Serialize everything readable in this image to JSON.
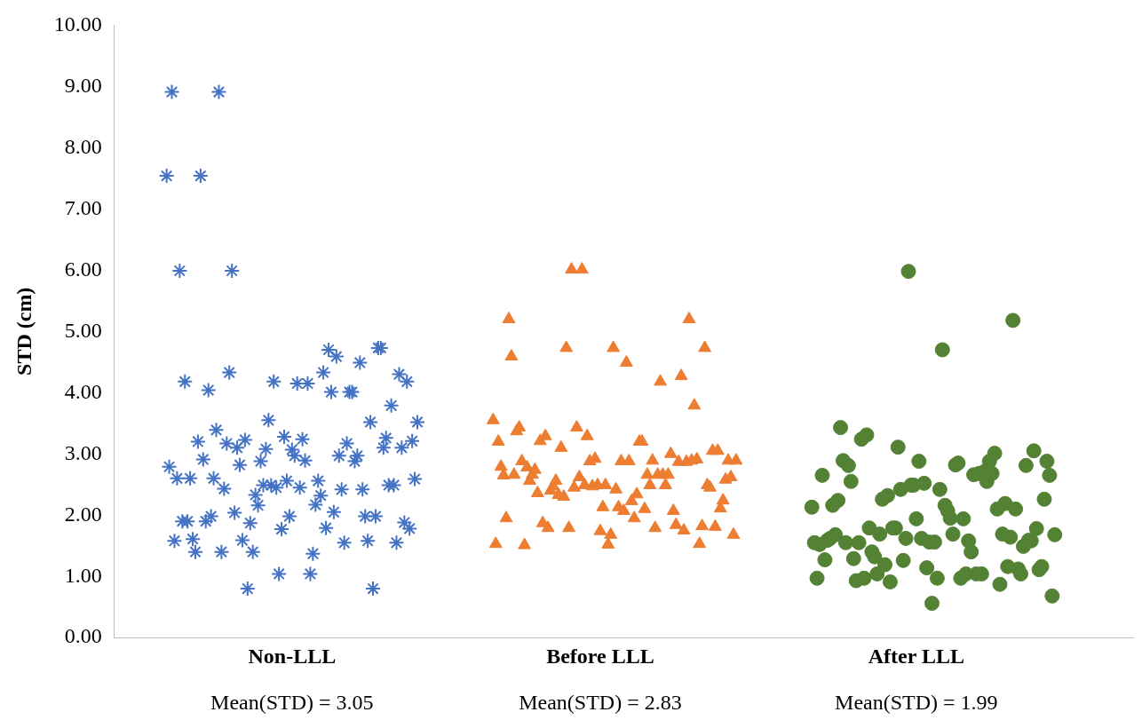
{
  "chart_data": {
    "type": "scatter",
    "ylabel": "STD (cm)",
    "categories": [
      null,
      null,
      null,
      null,
      null,
      null,
      null,
      null,
      null,
      null,
      null,
      null,
      null,
      null,
      null,
      null,
      null,
      null,
      null,
      null,
      null,
      null,
      null,
      null,
      null,
      null,
      null,
      null,
      null,
      null,
      null,
      null,
      null,
      null,
      null,
      null,
      null,
      null,
      null,
      null,
      null,
      null,
      null,
      null,
      null,
      null,
      null,
      null,
      "Non-LLL",
      null,
      null,
      null,
      null,
      null,
      null,
      null,
      null,
      null,
      null,
      null,
      null,
      null,
      null,
      null,
      null,
      null,
      null,
      null,
      null,
      null,
      null,
      null,
      null,
      null,
      null,
      null,
      null,
      null,
      null,
      null,
      null,
      null,
      null,
      null,
      null,
      null,
      null,
      null,
      null,
      null,
      null,
      null,
      null,
      null,
      null,
      null,
      null,
      null,
      null,
      null,
      null,
      null,
      null,
      null,
      null,
      null,
      null,
      null,
      null,
      null,
      null,
      null,
      null,
      null,
      null,
      null,
      null,
      null,
      null,
      null,
      null,
      null,
      null,
      null,
      null,
      null,
      null,
      null,
      null,
      null,
      null,
      null,
      null,
      null,
      null,
      null,
      null,
      null,
      null,
      null,
      null,
      null,
      null,
      null,
      null,
      null,
      null,
      null,
      null,
      null,
      null,
      null,
      null,
      null,
      null,
      null,
      null,
      null,
      null,
      null,
      null,
      null,
      null,
      null,
      null,
      null,
      "Before LLL",
      null,
      null,
      null,
      null,
      null,
      null,
      null,
      null,
      null,
      null,
      null,
      null,
      null,
      null,
      null,
      null,
      null,
      null,
      null,
      null,
      null,
      null,
      null,
      null,
      null,
      null,
      null,
      null,
      null,
      null,
      null,
      null,
      null,
      null,
      null,
      null,
      null,
      null,
      null,
      null,
      null,
      null,
      null,
      null,
      null,
      null,
      null,
      null,
      null,
      null,
      null,
      null,
      null,
      null,
      null,
      null,
      null,
      null,
      null,
      null,
      null,
      null,
      null,
      null,
      null,
      null,
      null,
      null,
      null,
      null,
      null,
      null,
      null,
      null,
      null,
      null,
      null,
      null,
      null,
      null,
      null,
      null,
      null,
      null,
      null,
      null,
      null,
      null,
      null,
      null,
      null,
      null,
      null,
      null,
      null,
      null,
      null,
      null,
      null,
      null,
      null,
      null,
      null,
      null,
      null,
      null,
      null,
      null,
      null,
      null,
      null,
      null,
      null,
      null,
      null,
      null,
      null,
      null,
      null,
      null,
      "After LLL",
      null,
      null,
      null,
      null,
      null,
      null,
      null,
      null,
      null,
      null,
      null,
      null,
      null,
      null,
      null,
      null,
      null,
      null,
      null,
      null,
      null,
      null,
      null,
      null,
      null,
      null,
      null,
      null,
      null,
      null,
      null,
      null,
      null,
      null,
      null,
      null,
      null,
      null,
      null,
      null,
      null,
      null,
      null,
      null,
      null,
      null,
      null,
      null,
      null,
      null,
      null,
      null,
      null
    ],
    "ylim": [
      0,
      10
    ],
    "yticks": [
      {
        "value": 0,
        "label": "0.00"
      },
      {
        "value": 1,
        "label": "1.00"
      },
      {
        "value": 2,
        "label": "2.00"
      },
      {
        "value": 3,
        "label": "3.00"
      },
      {
        "value": 4,
        "label": "4.00"
      },
      {
        "value": 5,
        "label": "5.00"
      },
      {
        "value": 6,
        "label": "6.00"
      },
      {
        "value": 7,
        "label": "7.00"
      },
      {
        "value": 8,
        "label": "8.00"
      },
      {
        "value": 9,
        "label": "9.00"
      },
      {
        "value": 10,
        "label": "10.00"
      }
    ],
    "grid": false,
    "legend": false,
    "annotations": [
      "Mean(STD) = 3.05",
      "Mean(STD) = 2.83",
      "Mean(STD) = 1.99"
    ],
    "series": [
      {
        "color": "#4472c4",
        "marker": "cross",
        "values": [
          7.54,
          2.79,
          8.91,
          1.58,
          2.6,
          5.99,
          1.9,
          4.18,
          1.9,
          2.6,
          1.61,
          1.4,
          3.2,
          7.54,
          2.91,
          1.9,
          4.04,
          1.98,
          2.6,
          3.39,
          8.91,
          1.4,
          2.43,
          3.17,
          4.33,
          5.99,
          2.04,
          3.1,
          2.82,
          1.59,
          3.23,
          0.8,
          1.87,
          1.4,
          2.33,
          2.16,
          2.88,
          2.49,
          3.08,
          3.55,
          2.49,
          4.18,
          2.45,
          1.04,
          1.77,
          3.28,
          2.56,
          1.98,
          3.07,
          2.97,
          4.15,
          2.45,
          3.24,
          2.89,
          4.15,
          1.04,
          1.37,
          2.17,
          2.56,
          2.32,
          4.33,
          1.79,
          4.7,
          4.01,
          2.05,
          4.59,
          2.97,
          2.42,
          1.55,
          3.17,
          4.01,
          4.01,
          2.88,
          2.97,
          4.49,
          2.42,
          1.98,
          1.58,
          3.52,
          0.8,
          1.98,
          4.73,
          4.73,
          3.1,
          3.26,
          2.49,
          3.79,
          2.49,
          1.55,
          4.3,
          3.1,
          1.88,
          4.18,
          1.78,
          3.21,
          2.59,
          3.52,
          null,
          null,
          null,
          null,
          null,
          null,
          null,
          null,
          null,
          null,
          null,
          null,
          null,
          null,
          null,
          null,
          null,
          null,
          null,
          null,
          null,
          null,
          null,
          null,
          null,
          null,
          null,
          null,
          null,
          null,
          null,
          null,
          null,
          null,
          null,
          null,
          null,
          null,
          null,
          null,
          null,
          null,
          null,
          null,
          null,
          null,
          null,
          null,
          null,
          null,
          null,
          null,
          null,
          null,
          null,
          null,
          null,
          null,
          null,
          null,
          null,
          null,
          null,
          null,
          null,
          null,
          null,
          null,
          null,
          null,
          null,
          null,
          null,
          null,
          null,
          null,
          null,
          null,
          null,
          null,
          null,
          null,
          null,
          null,
          null,
          null,
          null,
          null,
          null,
          null,
          null,
          null,
          null,
          null,
          null,
          null,
          null,
          null,
          null,
          null,
          null,
          null,
          null,
          null,
          null,
          null,
          null,
          null,
          null,
          null,
          null,
          null,
          null,
          null,
          null,
          null,
          null,
          null,
          null,
          null,
          null,
          null,
          null,
          null,
          null,
          null,
          null,
          null,
          null,
          null,
          null,
          null,
          null,
          null,
          null,
          null,
          null,
          null,
          null,
          null,
          null,
          null,
          null,
          null,
          null,
          null,
          null,
          null,
          null,
          null,
          null,
          null,
          null,
          null,
          null,
          null,
          null,
          null,
          null,
          null,
          null,
          null,
          null,
          null,
          null,
          null,
          null,
          null,
          null,
          null,
          null,
          null,
          null,
          null,
          null,
          null,
          null,
          null,
          null,
          null,
          null,
          null,
          null,
          null,
          null,
          null,
          null,
          null,
          null,
          null,
          null,
          null,
          null,
          null,
          null,
          null,
          null,
          null,
          null,
          null,
          null,
          null,
          null,
          null,
          null,
          null,
          null,
          null,
          null,
          null,
          null,
          null,
          null,
          null,
          null,
          null,
          null,
          null,
          null,
          null,
          null,
          null,
          null,
          null,
          null,
          null,
          null,
          null,
          null,
          null,
          null,
          null,
          null,
          null,
          null,
          null,
          null,
          null,
          null,
          null,
          null,
          null,
          null,
          null
        ]
      },
      {
        "color": "#ed7d31",
        "marker": "triangle",
        "values": [
          null,
          null,
          null,
          null,
          null,
          null,
          null,
          null,
          null,
          null,
          null,
          null,
          null,
          null,
          null,
          null,
          null,
          null,
          null,
          null,
          null,
          null,
          null,
          null,
          null,
          null,
          null,
          null,
          null,
          null,
          null,
          null,
          null,
          null,
          null,
          null,
          null,
          null,
          null,
          null,
          null,
          null,
          null,
          null,
          null,
          null,
          null,
          null,
          null,
          null,
          null,
          null,
          null,
          null,
          null,
          null,
          null,
          null,
          null,
          null,
          null,
          null,
          null,
          null,
          null,
          null,
          null,
          null,
          null,
          null,
          null,
          null,
          null,
          null,
          null,
          null,
          null,
          null,
          null,
          null,
          null,
          null,
          null,
          null,
          null,
          null,
          null,
          null,
          null,
          null,
          null,
          null,
          null,
          null,
          null,
          null,
          null,
          null,
          null,
          null,
          null,
          null,
          null,
          null,
          null,
          null,
          null,
          null,
          null,
          null,
          null,
          null,
          null,
          null,
          null,
          null,
          null,
          null,
          null,
          null,
          null,
          null,
          null,
          null,
          null,
          3.55,
          1.53,
          3.2,
          2.79,
          2.65,
          1.95,
          5.2,
          4.59,
          2.66,
          3.37,
          3.43,
          2.88,
          1.51,
          2.78,
          2.56,
          2.66,
          2.74,
          2.36,
          3.21,
          1.87,
          3.29,
          1.79,
          2.4,
          2.47,
          2.56,
          2.33,
          3.1,
          2.3,
          4.73,
          1.79,
          6.01,
          2.45,
          3.43,
          2.62,
          6.01,
          2.49,
          3.29,
          2.88,
          2.47,
          2.92,
          2.49,
          1.74,
          2.13,
          2.49,
          1.52,
          1.68,
          4.73,
          2.42,
          2.13,
          2.88,
          2.07,
          4.49,
          2.88,
          2.23,
          1.95,
          2.34,
          3.2,
          3.2,
          2.1,
          2.66,
          2.49,
          2.89,
          1.79,
          2.66,
          4.18,
          2.66,
          2.49,
          2.66,
          3.0,
          2.07,
          1.84,
          2.87,
          4.27,
          1.75,
          2.87,
          5.2,
          2.89,
          3.79,
          2.91,
          1.53,
          1.82,
          4.73,
          2.49,
          2.45,
          3.05,
          1.81,
          3.05,
          2.11,
          2.24,
          2.58,
          2.89,
          2.62,
          1.68,
          2.89,
          null,
          null,
          null,
          null,
          null,
          null,
          null,
          null,
          null,
          null,
          null,
          null,
          null,
          null,
          null,
          null,
          null,
          null,
          null,
          null,
          null,
          null,
          null,
          null,
          null,
          null,
          null,
          null,
          null,
          null,
          null,
          null,
          null,
          null,
          null,
          null,
          null,
          null,
          null,
          null,
          null,
          null,
          null,
          null,
          null,
          null,
          null,
          null,
          null,
          null,
          null,
          null,
          null,
          null,
          null,
          null,
          null,
          null,
          null,
          null,
          null,
          null,
          null,
          null,
          null,
          null,
          null,
          null,
          null,
          null,
          null,
          null,
          null,
          null,
          null,
          null,
          null,
          null,
          null,
          null,
          null,
          null,
          null,
          null,
          null,
          null,
          null,
          null,
          null,
          null,
          null,
          null,
          null,
          null,
          null,
          null,
          null,
          null,
          null,
          null,
          null,
          null,
          null,
          null,
          null,
          null,
          null,
          null,
          null,
          null,
          null,
          null,
          null,
          null,
          null,
          null,
          null,
          null,
          null,
          null,
          null,
          null
        ]
      },
      {
        "color": "#548235",
        "marker": "circle",
        "values": [
          null,
          null,
          null,
          null,
          null,
          null,
          null,
          null,
          null,
          null,
          null,
          null,
          null,
          null,
          null,
          null,
          null,
          null,
          null,
          null,
          null,
          null,
          null,
          null,
          null,
          null,
          null,
          null,
          null,
          null,
          null,
          null,
          null,
          null,
          null,
          null,
          null,
          null,
          null,
          null,
          null,
          null,
          null,
          null,
          null,
          null,
          null,
          null,
          null,
          null,
          null,
          null,
          null,
          null,
          null,
          null,
          null,
          null,
          null,
          null,
          null,
          null,
          null,
          null,
          null,
          null,
          null,
          null,
          null,
          null,
          null,
          null,
          null,
          null,
          null,
          null,
          null,
          null,
          null,
          null,
          null,
          null,
          null,
          null,
          null,
          null,
          null,
          null,
          null,
          null,
          null,
          null,
          null,
          null,
          null,
          null,
          null,
          null,
          null,
          null,
          null,
          null,
          null,
          null,
          null,
          null,
          null,
          null,
          null,
          null,
          null,
          null,
          null,
          null,
          null,
          null,
          null,
          null,
          null,
          null,
          null,
          null,
          null,
          null,
          null,
          null,
          null,
          null,
          null,
          null,
          null,
          null,
          null,
          null,
          null,
          null,
          null,
          null,
          null,
          null,
          null,
          null,
          null,
          null,
          null,
          null,
          null,
          null,
          null,
          null,
          null,
          null,
          null,
          null,
          null,
          null,
          null,
          null,
          null,
          null,
          null,
          null,
          null,
          null,
          null,
          null,
          null,
          null,
          null,
          null,
          null,
          null,
          null,
          null,
          null,
          null,
          null,
          null,
          null,
          null,
          null,
          null,
          null,
          null,
          null,
          null,
          null,
          null,
          null,
          null,
          null,
          null,
          null,
          null,
          null,
          null,
          null,
          null,
          null,
          null,
          null,
          null,
          null,
          null,
          null,
          null,
          null,
          null,
          null,
          null,
          null,
          null,
          null,
          null,
          null,
          null,
          null,
          null,
          null,
          null,
          null,
          null,
          null,
          null,
          null,
          null,
          null,
          null,
          null,
          null,
          null,
          null,
          null,
          null,
          null,
          null,
          null,
          null,
          null,
          null,
          null,
          null,
          null,
          null,
          null,
          null,
          null,
          2.13,
          1.55,
          0.97,
          1.52,
          2.65,
          1.27,
          1.59,
          1.62,
          2.16,
          1.68,
          2.24,
          3.43,
          2.89,
          1.55,
          2.81,
          2.55,
          1.29,
          0.93,
          1.55,
          3.24,
          0.97,
          3.31,
          1.79,
          1.4,
          1.32,
          1.04,
          1.69,
          2.26,
          1.19,
          2.32,
          0.91,
          1.79,
          1.79,
          3.11,
          2.42,
          1.26,
          1.62,
          5.98,
          2.49,
          2.49,
          1.94,
          2.88,
          1.62,
          2.52,
          1.14,
          1.56,
          0.56,
          1.56,
          0.97,
          2.42,
          4.7,
          2.16,
          2.07,
          1.95,
          1.69,
          2.82,
          2.85,
          0.97,
          1.94,
          1.04,
          1.58,
          1.4,
          2.66,
          1.04,
          2.68,
          1.04,
          2.71,
          2.55,
          2.88,
          2.68,
          3.01,
          2.1,
          0.87,
          1.69,
          2.19,
          1.16,
          1.64,
          5.18,
          2.1,
          1.12,
          1.04,
          1.49,
          2.81,
          1.59,
          1.58,
          3.05,
          1.78,
          1.11,
          1.16,
          2.26,
          2.88,
          2.65,
          0.68,
          1.68
        ]
      }
    ]
  }
}
